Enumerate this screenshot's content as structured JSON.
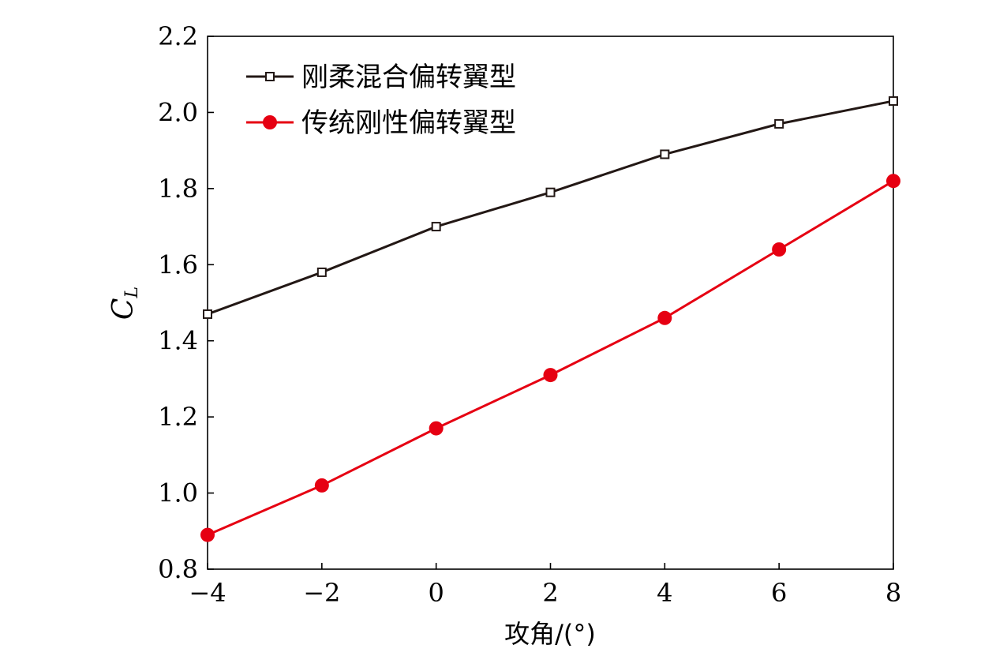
{
  "chart_data": {
    "type": "line",
    "xlabel": "攻角/(°)",
    "ylabel": {
      "main": "C",
      "subscript": "L"
    },
    "x": [
      -4,
      -2,
      0,
      2,
      4,
      6,
      8
    ],
    "xlim": [
      -4,
      8
    ],
    "ylim": [
      0.8,
      2.2
    ],
    "xticks": [
      "−4",
      "−2",
      "0",
      "2",
      "4",
      "6",
      "8"
    ],
    "yticks": [
      "0.8",
      "1.0",
      "1.2",
      "1.4",
      "1.6",
      "1.8",
      "2.0",
      "2.2"
    ],
    "grid": false,
    "legend_position": "top-left",
    "series": [
      {
        "name": "刚柔混合偏转翼型",
        "values": [
          1.47,
          1.58,
          1.7,
          1.79,
          1.89,
          1.97,
          2.03
        ],
        "color": "#231815",
        "marker": "open-square"
      },
      {
        "name": "传统刚性偏转翼型",
        "values": [
          0.89,
          1.02,
          1.17,
          1.31,
          1.46,
          1.64,
          1.82
        ],
        "color": "#e60012",
        "marker": "filled-circle"
      }
    ]
  }
}
